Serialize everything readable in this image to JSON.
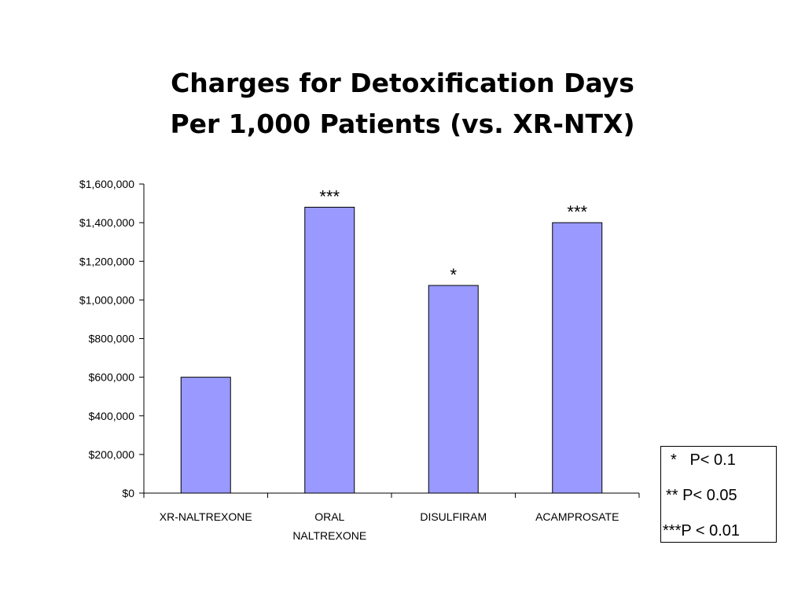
{
  "chart_data": {
    "type": "bar",
    "title": [
      "Charges for Detoxification Days",
      "Per 1,000 Patients (vs. XR-NTX)"
    ],
    "categories": [
      [
        "XR-NALTREXONE"
      ],
      [
        "ORAL",
        "NALTREXONE"
      ],
      [
        "DISULFIRAM"
      ],
      [
        "ACAMPROSATE"
      ]
    ],
    "values": [
      600000,
      1480000,
      1075000,
      1400000
    ],
    "annotations": [
      "",
      "***",
      "*",
      "***"
    ],
    "ylim": [
      0,
      1600000
    ],
    "yticks": [
      0,
      200000,
      400000,
      600000,
      800000,
      1000000,
      1200000,
      1400000,
      1600000
    ],
    "ytick_labels": [
      "$0",
      "$200,000",
      "$400,000",
      "$600,000",
      "$800,000",
      "$1,000,000",
      "$1,200,000",
      "$1,400,000",
      "$1,600,000"
    ],
    "grid": false,
    "bar_color": "#9999ff",
    "bar_edge_color": "#000000"
  },
  "legend": {
    "entries": [
      "*   P< 0.1",
      "** P< 0.05",
      "***P < 0.01"
    ],
    "placement": "bottom-right"
  }
}
